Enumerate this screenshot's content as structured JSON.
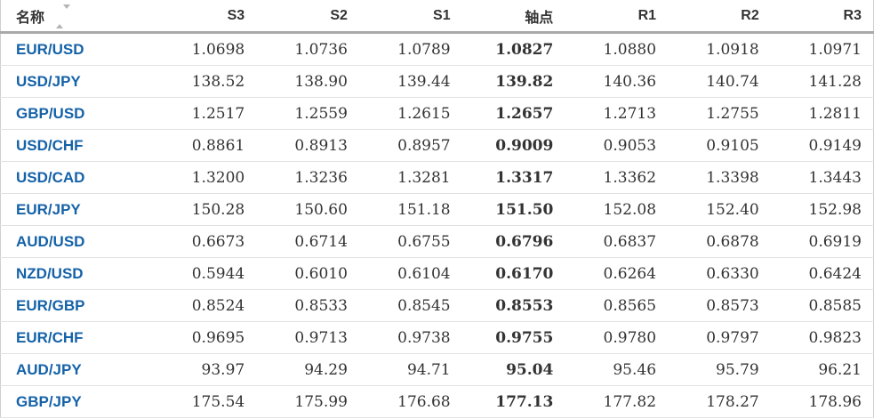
{
  "table": {
    "name_header": {
      "label": "名称",
      "sort_icon": "sort-up-down-arrows"
    },
    "columns": [
      {
        "id": "s3",
        "label": "S3",
        "emphasis": false
      },
      {
        "id": "s2",
        "label": "S2",
        "emphasis": false
      },
      {
        "id": "s1",
        "label": "S1",
        "emphasis": false
      },
      {
        "id": "pivot",
        "label": "轴点",
        "emphasis": true
      },
      {
        "id": "r1",
        "label": "R1",
        "emphasis": false
      },
      {
        "id": "r2",
        "label": "R2",
        "emphasis": false
      },
      {
        "id": "r3",
        "label": "R3",
        "emphasis": false
      }
    ],
    "rows": [
      {
        "name": "EUR/USD",
        "values": [
          "1.0698",
          "1.0736",
          "1.0789",
          "1.0827",
          "1.0880",
          "1.0918",
          "1.0971"
        ]
      },
      {
        "name": "USD/JPY",
        "values": [
          "138.52",
          "138.90",
          "139.44",
          "139.82",
          "140.36",
          "140.74",
          "141.28"
        ]
      },
      {
        "name": "GBP/USD",
        "values": [
          "1.2517",
          "1.2559",
          "1.2615",
          "1.2657",
          "1.2713",
          "1.2755",
          "1.2811"
        ]
      },
      {
        "name": "USD/CHF",
        "values": [
          "0.8861",
          "0.8913",
          "0.8957",
          "0.9009",
          "0.9053",
          "0.9105",
          "0.9149"
        ]
      },
      {
        "name": "USD/CAD",
        "values": [
          "1.3200",
          "1.3236",
          "1.3281",
          "1.3317",
          "1.3362",
          "1.3398",
          "1.3443"
        ]
      },
      {
        "name": "EUR/JPY",
        "values": [
          "150.28",
          "150.60",
          "151.18",
          "151.50",
          "152.08",
          "152.40",
          "152.98"
        ]
      },
      {
        "name": "AUD/USD",
        "values": [
          "0.6673",
          "0.6714",
          "0.6755",
          "0.6796",
          "0.6837",
          "0.6878",
          "0.6919"
        ]
      },
      {
        "name": "NZD/USD",
        "values": [
          "0.5944",
          "0.6010",
          "0.6104",
          "0.6170",
          "0.6264",
          "0.6330",
          "0.6424"
        ]
      },
      {
        "name": "EUR/GBP",
        "values": [
          "0.8524",
          "0.8533",
          "0.8545",
          "0.8553",
          "0.8565",
          "0.8573",
          "0.8585"
        ]
      },
      {
        "name": "EUR/CHF",
        "values": [
          "0.9695",
          "0.9713",
          "0.9738",
          "0.9755",
          "0.9780",
          "0.9797",
          "0.9823"
        ]
      },
      {
        "name": "AUD/JPY",
        "values": [
          "93.97",
          "94.29",
          "94.71",
          "95.04",
          "95.46",
          "95.79",
          "96.21"
        ]
      },
      {
        "name": "GBP/JPY",
        "values": [
          "175.54",
          "175.99",
          "176.68",
          "177.13",
          "177.82",
          "178.27",
          "178.96"
        ]
      }
    ]
  },
  "colors": {
    "pair_link": "#1562a8",
    "header_text": "#333333",
    "value_text": "#333333",
    "row_border": "#e2e2e2",
    "header_border": "#a9a9a9",
    "table_border": "#cfcfcf",
    "sort_icon": "#b5b5b5"
  }
}
